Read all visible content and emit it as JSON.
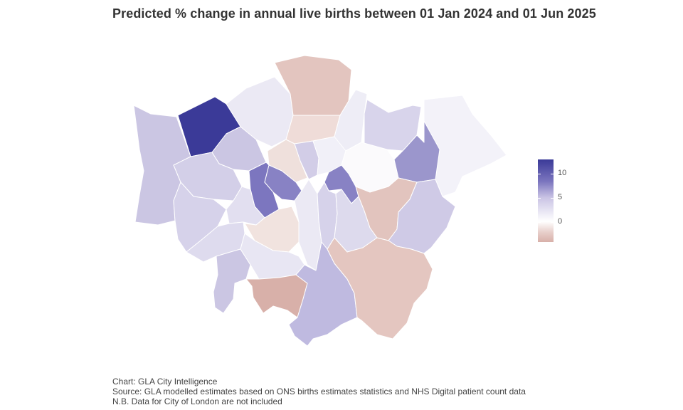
{
  "title": "Predicted % change in annual live births between 01 Jan 2024 and 01 Jun 2025",
  "legend": {
    "labels": [
      "10",
      "5",
      "0"
    ],
    "colors": [
      "#3b3a98",
      "#7c76bf",
      "#c9c3e4",
      "#ffffff",
      "#d8b0a9"
    ]
  },
  "caption": {
    "chart": "Chart: GLA City Intelligence",
    "source": "Source: GLA modelled estimates based on ONS births estimates statistics and NHS Digital patient count data",
    "note": "N.B. Data for City of London are not included"
  },
  "regions": [
    {
      "name": "barnet",
      "color": "#ebe9f4"
    },
    {
      "name": "enfield",
      "color": "#e3c5bf"
    },
    {
      "name": "haringey",
      "color": "#efdcd8"
    },
    {
      "name": "waltham-forest",
      "color": "#eeedf6"
    },
    {
      "name": "redbridge",
      "color": "#d8d4eb"
    },
    {
      "name": "havering",
      "color": "#f3f2f9"
    },
    {
      "name": "harrow",
      "color": "#3b3a98"
    },
    {
      "name": "hillingdon",
      "color": "#cbc6e3"
    },
    {
      "name": "brent",
      "color": "#cbc6e3"
    },
    {
      "name": "camden",
      "color": "#efe0dc"
    },
    {
      "name": "islington",
      "color": "#d2cde7"
    },
    {
      "name": "hackney",
      "color": "#f1f0f8"
    },
    {
      "name": "newham",
      "color": "#fbfafc"
    },
    {
      "name": "barking-dagenham",
      "color": "#9b96cc"
    },
    {
      "name": "ealing",
      "color": "#d3cfe8"
    },
    {
      "name": "kensington-chelsea",
      "color": "#7c76bf"
    },
    {
      "name": "westminster",
      "color": "#8882c4"
    },
    {
      "name": "tower-hamlets",
      "color": "#8882c4"
    },
    {
      "name": "hounslow",
      "color": "#d6d2ea"
    },
    {
      "name": "hammersmith-fulham",
      "color": "#e2dff0"
    },
    {
      "name": "wandsworth",
      "color": "#f1e3df"
    },
    {
      "name": "lambeth",
      "color": "#ebe9f4"
    },
    {
      "name": "southwark",
      "color": "#d6d2ea"
    },
    {
      "name": "lewisham",
      "color": "#dddaed"
    },
    {
      "name": "greenwich",
      "color": "#e2c4be"
    },
    {
      "name": "bexley",
      "color": "#cfcae6"
    },
    {
      "name": "richmond",
      "color": "#dedbee"
    },
    {
      "name": "kingston",
      "color": "#cbc6e3"
    },
    {
      "name": "merton",
      "color": "#e8e6f3"
    },
    {
      "name": "sutton",
      "color": "#d8b0a9"
    },
    {
      "name": "croydon",
      "color": "#bfbae0"
    },
    {
      "name": "bromley",
      "color": "#e4c6c0"
    }
  ]
}
